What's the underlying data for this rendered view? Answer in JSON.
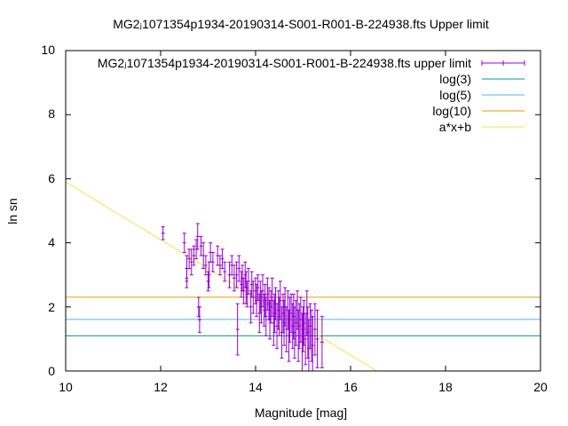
{
  "chart_data": {
    "type": "scatter",
    "title": "MG2ⱼ1071354p1934-20190314-S001-R001-B-224938.fts Upper limit",
    "xlabel": "Magnitude [mag]",
    "ylabel": "ln sn",
    "xlim": [
      10,
      20
    ],
    "ylim": [
      0,
      10
    ],
    "xticks": [
      "10",
      "12",
      "14",
      "16",
      "18",
      "20"
    ],
    "yticks": [
      "0",
      "2",
      "4",
      "6",
      "8",
      "10"
    ],
    "grid": false,
    "legend_position": "top-right",
    "legend": [
      "MG2ⱼ1071354p1934-20190314-S001-R001-B-224938.fts upper limit",
      "log(3)",
      "log(5)",
      "log(10)",
      "a*x+b"
    ],
    "colors": {
      "points": "#9400d3",
      "log3": "#009e73",
      "log5": "#56b4e9",
      "log10": "#e69f00",
      "fit": "#f0e442",
      "axes": "#000000"
    },
    "series": [
      {
        "name": "MG2ⱼ1071354p1934-20190314-S001-R001-B-224938.fts upper limit",
        "kind": "errorbars",
        "x": [
          12.05,
          12.5,
          12.55,
          12.55,
          12.6,
          12.65,
          12.7,
          12.75,
          12.78,
          12.8,
          12.82,
          12.85,
          12.9,
          12.95,
          13.0,
          13.02,
          13.05,
          13.1,
          13.2,
          13.25,
          13.3,
          13.35,
          13.45,
          13.5,
          13.55,
          13.6,
          13.62,
          13.65,
          13.7,
          13.72,
          13.75,
          13.78,
          13.8,
          13.82,
          13.85,
          13.9,
          13.92,
          13.95,
          14.0,
          14.02,
          14.05,
          14.08,
          14.1,
          14.12,
          14.15,
          14.18,
          14.2,
          14.22,
          14.25,
          14.28,
          14.3,
          14.32,
          14.35,
          14.38,
          14.4,
          14.42,
          14.45,
          14.48,
          14.5,
          14.52,
          14.55,
          14.58,
          14.6,
          14.62,
          14.65,
          14.68,
          14.7,
          14.72,
          14.75,
          14.78,
          14.8,
          14.82,
          14.85,
          14.88,
          14.9,
          14.92,
          14.95,
          14.98,
          15.0,
          15.02,
          15.05,
          15.08,
          15.1,
          15.12,
          15.15,
          15.18,
          15.2,
          15.25,
          15.3,
          15.4
        ],
        "y": [
          4.3,
          4.0,
          3.2,
          2.9,
          3.5,
          3.4,
          3.6,
          3.8,
          4.2,
          2.0,
          1.6,
          3.9,
          3.6,
          3.3,
          2.8,
          3.0,
          3.7,
          3.4,
          3.6,
          3.3,
          3.5,
          3.1,
          3.0,
          3.3,
          2.9,
          3.0,
          1.3,
          3.2,
          2.7,
          2.9,
          2.5,
          3.0,
          2.6,
          2.4,
          2.8,
          2.0,
          2.7,
          2.3,
          2.5,
          2.2,
          2.6,
          1.8,
          2.3,
          2.0,
          2.5,
          1.9,
          2.2,
          1.7,
          2.4,
          2.1,
          1.6,
          2.0,
          2.3,
          1.5,
          1.8,
          2.1,
          1.4,
          1.9,
          1.7,
          2.2,
          1.2,
          1.8,
          1.5,
          2.0,
          1.3,
          1.9,
          1.1,
          1.6,
          1.8,
          1.4,
          1.7,
          1.2,
          1.5,
          1.9,
          1.1,
          1.4,
          1.6,
          0.9,
          1.3,
          1.5,
          1.0,
          1.8,
          1.2,
          0.7,
          1.4,
          1.1,
          0.8,
          1.3,
          1.0,
          0.9
        ],
        "err": [
          0.2,
          0.3,
          0.4,
          0.3,
          0.3,
          0.4,
          0.3,
          0.3,
          0.4,
          0.3,
          0.4,
          0.3,
          0.4,
          0.3,
          0.3,
          0.4,
          0.3,
          0.3,
          0.3,
          0.3,
          0.3,
          0.3,
          0.4,
          0.3,
          0.4,
          0.4,
          0.8,
          0.4,
          0.4,
          0.4,
          0.4,
          0.4,
          0.5,
          0.4,
          0.4,
          0.5,
          0.4,
          0.5,
          0.4,
          0.5,
          0.4,
          0.6,
          0.5,
          0.5,
          0.5,
          0.5,
          0.5,
          0.6,
          0.5,
          0.5,
          0.6,
          0.5,
          0.6,
          0.7,
          0.6,
          0.5,
          0.7,
          0.6,
          0.6,
          0.6,
          0.8,
          0.6,
          0.7,
          0.6,
          0.7,
          0.6,
          0.8,
          0.7,
          0.6,
          0.7,
          0.7,
          0.8,
          0.7,
          0.6,
          0.8,
          0.7,
          0.7,
          0.9,
          0.7,
          0.7,
          0.8,
          0.7,
          0.8,
          0.9,
          0.7,
          0.8,
          0.9,
          0.8,
          0.9,
          0.8
        ]
      },
      {
        "name": "log(3)",
        "kind": "hline",
        "y": 1.0986
      },
      {
        "name": "log(5)",
        "kind": "hline",
        "y": 1.6094
      },
      {
        "name": "log(10)",
        "kind": "hline",
        "y": 2.3026
      },
      {
        "name": "a*x+b",
        "kind": "line",
        "x": [
          10,
          16.55
        ],
        "y": [
          5.9,
          0
        ]
      }
    ]
  }
}
